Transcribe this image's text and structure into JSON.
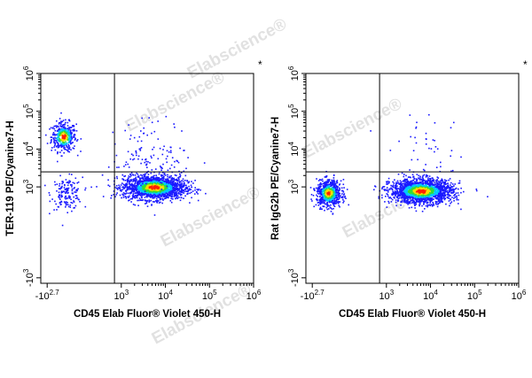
{
  "watermark": "Elabscience",
  "chart_data": [
    {
      "type": "scatter",
      "xlabel": "CD45 Elab Fluor® Violet 450-H",
      "ylabel": "TER-119 PE/Cyanine7-H",
      "corner_mark": "*",
      "x_scale": "biexponential",
      "y_scale": "biexponential",
      "x_ticks": [
        {
          "base": "-10",
          "exp": "2.7",
          "value": -500
        },
        {
          "base": "10",
          "exp": "3",
          "value": 1000
        },
        {
          "base": "10",
          "exp": "4",
          "value": 10000
        },
        {
          "base": "10",
          "exp": "5",
          "value": 100000
        },
        {
          "base": "10",
          "exp": "6",
          "value": 1000000
        }
      ],
      "y_ticks": [
        {
          "base": "-10",
          "exp": "3",
          "value": -1000
        },
        {
          "base": "10",
          "exp": "3",
          "value": 1000
        },
        {
          "base": "10",
          "exp": "4",
          "value": 10000
        },
        {
          "base": "10",
          "exp": "5",
          "value": 100000
        },
        {
          "base": "10",
          "exp": "6",
          "value": 1000000
        }
      ],
      "gate_x": 700,
      "gate_y": 2500,
      "populations": [
        {
          "x": -250,
          "y": 22000,
          "spread_x": 0.4,
          "spread_y": 0.55,
          "events": 420,
          "density": "high"
        },
        {
          "x": -200,
          "y": 700,
          "spread_x": 0.5,
          "spread_y": 0.6,
          "events": 160,
          "density": "low"
        },
        {
          "x": 5500,
          "y": 1000,
          "spread_x": 1.0,
          "spread_y": 0.45,
          "events": 1800,
          "density": "high"
        },
        {
          "x": 5000,
          "y": 6000,
          "spread_x": 1.3,
          "spread_y": 1.4,
          "events": 140,
          "density": "low"
        }
      ]
    },
    {
      "type": "scatter",
      "xlabel": "CD45 Elab Fluor® Violet 450-H",
      "ylabel": "Rat IgG2b PE/Cyanine7-H",
      "corner_mark": "*",
      "x_scale": "biexponential",
      "y_scale": "biexponential",
      "x_ticks": [
        {
          "base": "-10",
          "exp": "2.7",
          "value": -500
        },
        {
          "base": "10",
          "exp": "3",
          "value": 1000
        },
        {
          "base": "10",
          "exp": "4",
          "value": 10000
        },
        {
          "base": "10",
          "exp": "5",
          "value": 100000
        },
        {
          "base": "10",
          "exp": "6",
          "value": 1000000
        }
      ],
      "y_ticks": [
        {
          "base": "-10",
          "exp": "3",
          "value": -1000
        },
        {
          "base": "10",
          "exp": "3",
          "value": 1000
        },
        {
          "base": "10",
          "exp": "4",
          "value": 10000
        },
        {
          "base": "10",
          "exp": "5",
          "value": 100000
        },
        {
          "base": "10",
          "exp": "6",
          "value": 1000000
        }
      ],
      "gate_x": 700,
      "gate_y": 2500,
      "populations": [
        {
          "x": -250,
          "y": 700,
          "spread_x": 0.4,
          "spread_y": 0.5,
          "events": 700,
          "density": "high"
        },
        {
          "x": 6000,
          "y": 800,
          "spread_x": 1.0,
          "spread_y": 0.45,
          "events": 1900,
          "density": "high"
        },
        {
          "x": 8000,
          "y": 9000,
          "spread_x": 1.2,
          "spread_y": 1.3,
          "events": 45,
          "density": "low"
        }
      ]
    }
  ],
  "colors": {
    "density_low": "#1a1aff",
    "density_mid": "#00c8ff",
    "density_mid2": "#33dd33",
    "density_high": "#ffdd00",
    "density_peak": "#ff2200",
    "axis": "#000000",
    "gate": "#000000",
    "watermark": "#bcbcbc"
  }
}
